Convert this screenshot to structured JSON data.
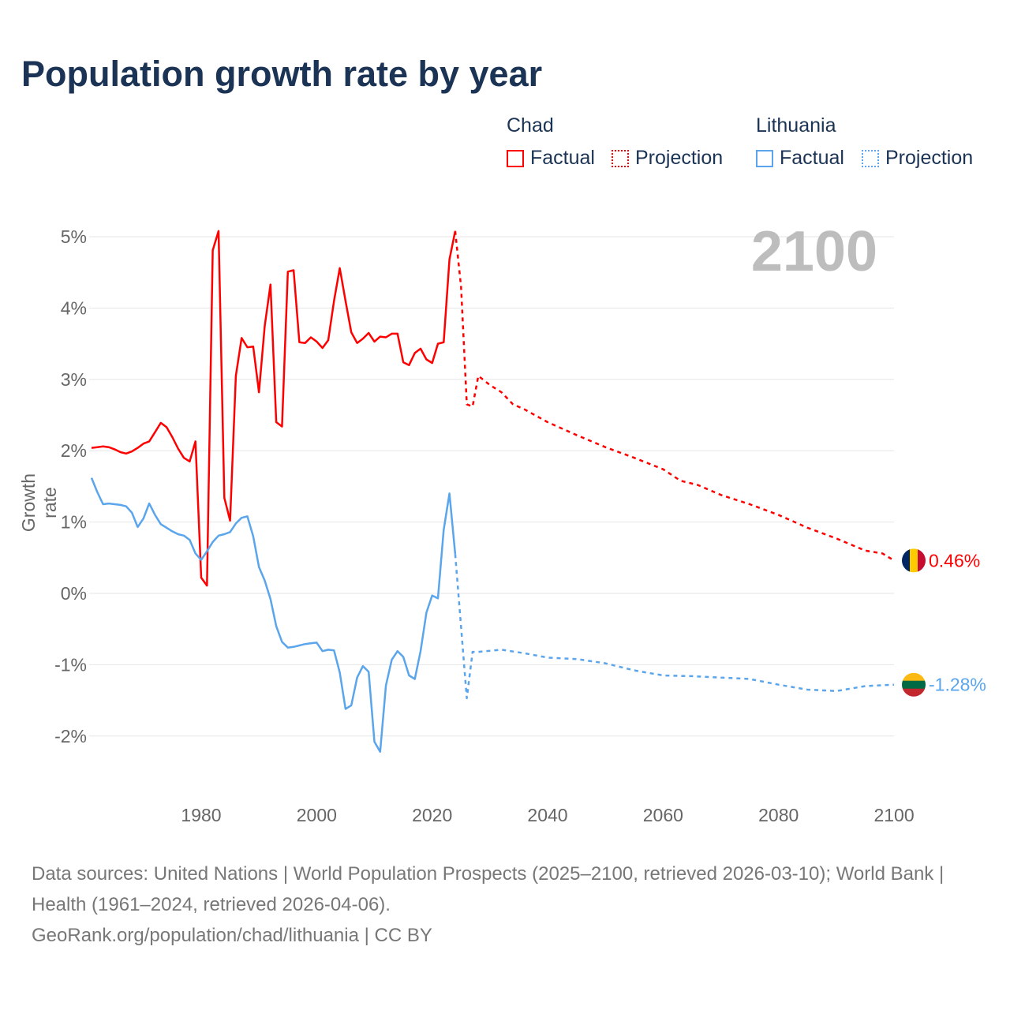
{
  "title": "Population growth rate by year",
  "legend": {
    "groups": [
      {
        "name": "Chad",
        "color": "#ff0000",
        "items": [
          "Factual",
          "Projection"
        ]
      },
      {
        "name": "Lithuania",
        "color": "#5aa5eb",
        "items": [
          "Factual",
          "Projection"
        ]
      }
    ]
  },
  "current_year": "2100",
  "end_labels": {
    "chad": "0.46%",
    "lithuania": "-1.28%"
  },
  "footer": {
    "line1": "Data sources: United Nations | World Population Prospects (2025–2100, retrieved 2026-03-10); World Bank | Health (1961–2024, retrieved 2026-04-06).",
    "line2": "GeoRank.org/population/chad/lithuania | CC BY"
  },
  "chart_data": {
    "type": "line",
    "title": "Population growth rate by year",
    "xlabel": "",
    "ylabel": "Growth rate",
    "xlim": [
      1961,
      2100
    ],
    "ylim": [
      -2.8,
      5.2
    ],
    "x_ticks": [
      "1980",
      "2000",
      "2020",
      "2040",
      "2060",
      "2080",
      "2100"
    ],
    "y_ticks": [
      "5%",
      "4%",
      "3%",
      "2%",
      "1%",
      "0%",
      "-1%",
      "-2%"
    ],
    "grid": true,
    "series": [
      {
        "name": "Chad Factual",
        "color": "#ff0000",
        "dashed": false,
        "start": 1961,
        "values": [
          2.04,
          2.05,
          2.06,
          2.05,
          2.02,
          1.98,
          1.96,
          1.99,
          2.04,
          2.1,
          2.13,
          2.26,
          2.39,
          2.33,
          2.19,
          2.03,
          1.9,
          1.85,
          2.13,
          0.22,
          0.11,
          4.81,
          5.08,
          1.34,
          1.02,
          3.05,
          3.58,
          3.45,
          3.46,
          2.82,
          3.75,
          4.33,
          2.4,
          2.34,
          4.51,
          4.53,
          3.52,
          3.51,
          3.59,
          3.53,
          3.44,
          3.55,
          4.1,
          4.56,
          4.1,
          3.66,
          3.51,
          3.57,
          3.65,
          3.53,
          3.6,
          3.59,
          3.64,
          3.64,
          3.24,
          3.2,
          3.37,
          3.43,
          3.28,
          3.23,
          3.5,
          3.52,
          4.68,
          5.08
        ]
      },
      {
        "name": "Chad Projection",
        "color": "#ff0000",
        "dashed": true,
        "x": [
          2024,
          2025,
          2026,
          2027,
          2028,
          2030,
          2032,
          2034,
          2036,
          2040,
          2045,
          2050,
          2055,
          2060,
          2063,
          2066,
          2070,
          2075,
          2080,
          2085,
          2090,
          2095,
          2098,
          2100
        ],
        "values": [
          5.08,
          4.3,
          2.65,
          2.62,
          3.05,
          2.92,
          2.82,
          2.65,
          2.58,
          2.4,
          2.22,
          2.05,
          1.9,
          1.74,
          1.58,
          1.52,
          1.38,
          1.25,
          1.1,
          0.92,
          0.77,
          0.6,
          0.56,
          0.46
        ]
      },
      {
        "name": "Lithuania Factual",
        "color": "#5aa5eb",
        "dashed": false,
        "start": 1961,
        "values": [
          1.62,
          1.42,
          1.25,
          1.26,
          1.25,
          1.24,
          1.22,
          1.13,
          0.93,
          1.05,
          1.26,
          1.1,
          0.97,
          0.92,
          0.87,
          0.83,
          0.81,
          0.75,
          0.56,
          0.47,
          0.59,
          0.72,
          0.81,
          0.83,
          0.86,
          0.98,
          1.06,
          1.08,
          0.8,
          0.37,
          0.18,
          -0.08,
          -0.46,
          -0.68,
          -0.76,
          -0.75,
          -0.73,
          -0.71,
          -0.7,
          -0.69,
          -0.81,
          -0.79,
          -0.8,
          -1.11,
          -1.62,
          -1.57,
          -1.18,
          -1.02,
          -1.1,
          -2.08,
          -2.22,
          -1.29,
          -0.93,
          -0.81,
          -0.89,
          -1.15,
          -1.2,
          -0.81,
          -0.27,
          -0.03,
          -0.07,
          0.89,
          1.4,
          0.55
        ]
      },
      {
        "name": "Lithuania Projection",
        "color": "#5aa5eb",
        "dashed": true,
        "x": [
          2024,
          2026,
          2027,
          2028,
          2032,
          2036,
          2040,
          2045,
          2050,
          2055,
          2060,
          2065,
          2070,
          2075,
          2080,
          2085,
          2090,
          2095,
          2100
        ],
        "values": [
          0.55,
          -1.47,
          -0.82,
          -0.82,
          -0.79,
          -0.84,
          -0.9,
          -0.92,
          -0.98,
          -1.08,
          -1.15,
          -1.16,
          -1.18,
          -1.2,
          -1.28,
          -1.35,
          -1.37,
          -1.3,
          -1.28
        ]
      }
    ]
  }
}
